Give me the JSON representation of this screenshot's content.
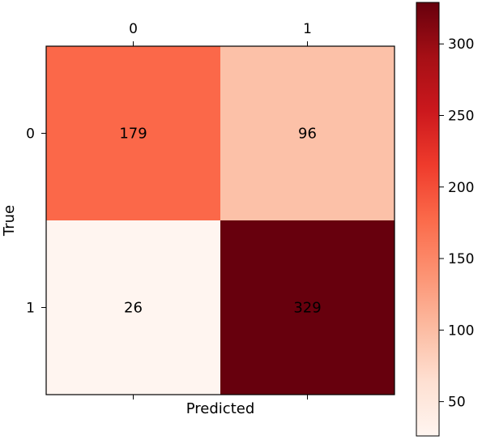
{
  "chart_data": {
    "type": "heatmap",
    "title": "",
    "xlabel": "Predicted",
    "ylabel": "True",
    "x_categories": [
      "0",
      "1"
    ],
    "y_categories": [
      "0",
      "1"
    ],
    "matrix": [
      [
        179,
        96
      ],
      [
        26,
        329
      ]
    ],
    "value_labels": [
      [
        "179",
        "96"
      ],
      [
        "26",
        "329"
      ]
    ],
    "colormap": "Reds",
    "color_range": [
      26,
      329
    ],
    "colorbar": {
      "ticks": [
        50,
        100,
        150,
        200,
        250,
        300
      ],
      "tick_labels": [
        "50",
        "100",
        "150",
        "200",
        "250",
        "300"
      ],
      "position": "right"
    },
    "x_tick_position": "top",
    "grid": false
  }
}
